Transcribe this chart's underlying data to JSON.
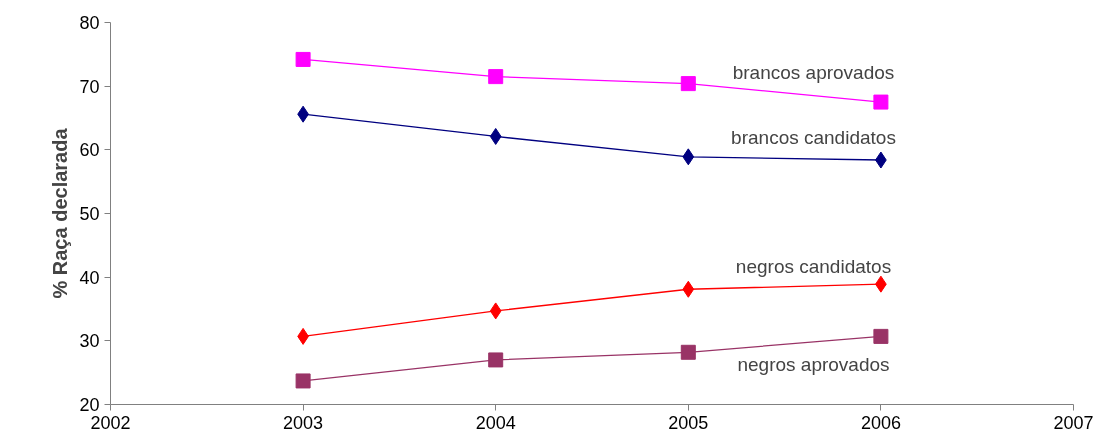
{
  "chart_data": {
    "type": "line",
    "ylabel": "% Raça declarada",
    "x": [
      2003,
      2004,
      2005,
      2006
    ],
    "xlim": [
      2002,
      2007
    ],
    "xticks": [
      2002,
      2003,
      2004,
      2005,
      2006,
      2007
    ],
    "ylim": [
      20,
      80
    ],
    "yticks": [
      20,
      30,
      40,
      50,
      60,
      70,
      80
    ],
    "grid": false,
    "legend": false,
    "line_style": "solid",
    "series": [
      {
        "name": "brancos aprovados",
        "color": "#ff00ff",
        "marker": "square",
        "values": [
          74.2,
          71.5,
          70.4,
          67.5
        ]
      },
      {
        "name": "brancos candidatos",
        "color": "#000080",
        "marker": "diamond",
        "values": [
          65.6,
          62.1,
          58.9,
          58.4
        ]
      },
      {
        "name": "negros candidatos",
        "color": "#ff0000",
        "marker": "diamond",
        "values": [
          30.7,
          34.7,
          38.1,
          38.9
        ]
      },
      {
        "name": "negros aprovados",
        "color": "#993366",
        "marker": "square",
        "values": [
          23.7,
          27.0,
          28.2,
          30.7
        ]
      }
    ]
  }
}
